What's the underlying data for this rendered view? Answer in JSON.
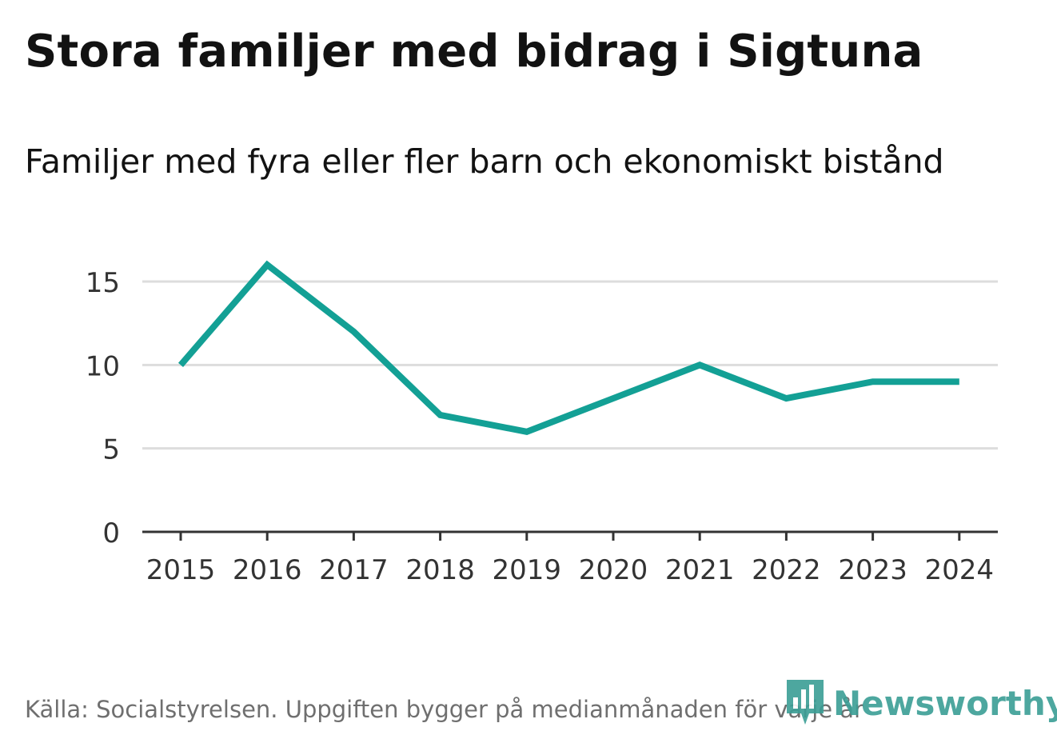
{
  "header": {
    "title": "Stora familjer med bidrag i Sigtuna",
    "subtitle": "Familjer med fyra eller fler barn och ekonomiskt bistånd"
  },
  "footer": {
    "source": "Källa: Socialstyrelsen. Uppgiften bygger på medianmånaden för varje år"
  },
  "brand": {
    "name": "Newsworthy",
    "color": "#3a9e95",
    "icon": "newsworthy-bar-chart-icon"
  },
  "chart_data": {
    "type": "line",
    "title": "Stora familjer med bidrag i Sigtuna",
    "subtitle": "Familjer med fyra eller fler barn och ekonomiskt bistånd",
    "xlabel": "",
    "ylabel": "",
    "categories": [
      "2015",
      "2016",
      "2017",
      "2018",
      "2019",
      "2020",
      "2021",
      "2022",
      "2023",
      "2024"
    ],
    "series": [
      {
        "name": "Familjer",
        "values": [
          10,
          16,
          12,
          7,
          6,
          8,
          10,
          8,
          9,
          9
        ],
        "color": "#13a095"
      }
    ],
    "y_ticks": [
      "0",
      "5",
      "10",
      "15"
    ],
    "ylim": [
      0,
      16.5
    ],
    "grid": true,
    "legend": "none"
  }
}
